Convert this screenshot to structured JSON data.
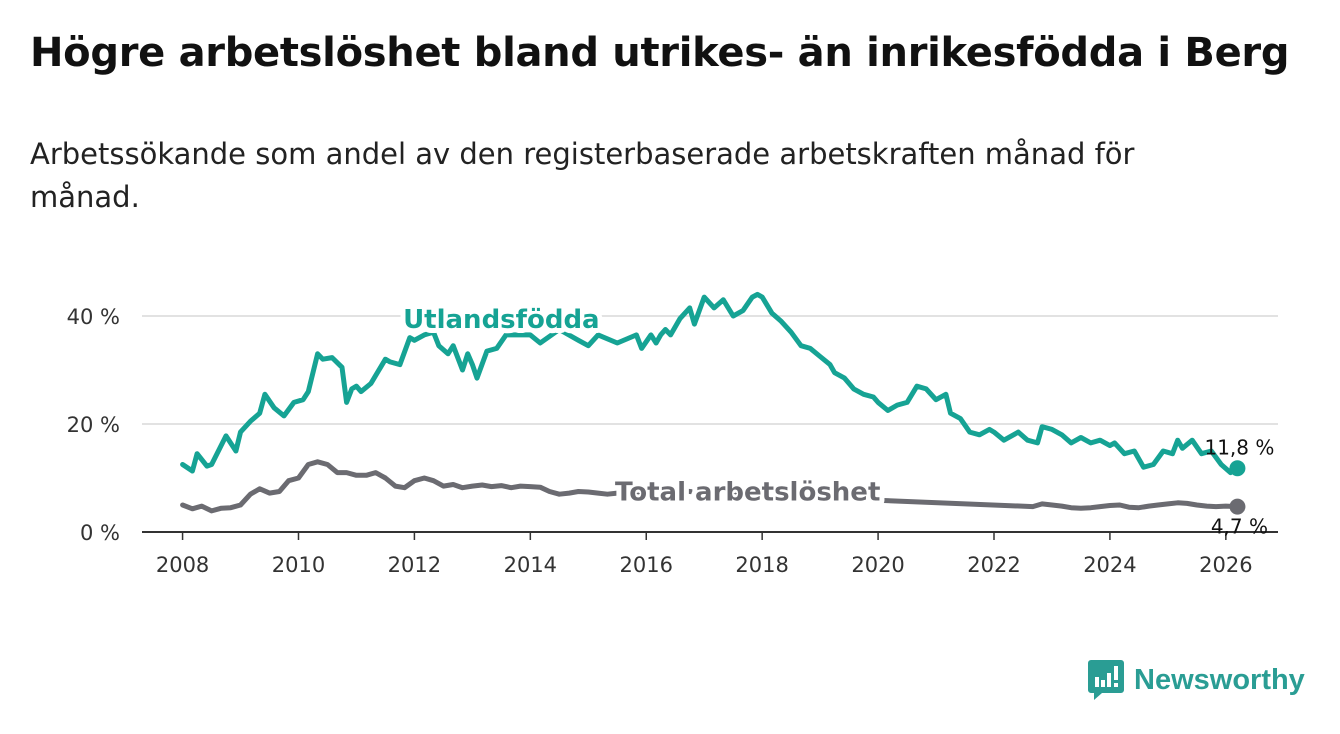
{
  "title": "Högre arbetslöshet bland utrikes- än inrikesfödda i Berg",
  "subtitle": "Arbetssökande som andel av den registerbaserade arbetskraften månad för månad.",
  "brand": {
    "name": "Newsworthy",
    "icon": "newsworthy-logo-icon",
    "color": "#2a9d94"
  },
  "chart_data": {
    "type": "line",
    "title": "Högre arbetslöshet bland utrikes- än inrikesfödda i Berg",
    "xlabel": "",
    "ylabel": "",
    "xlim": [
      2007.3,
      2026.9
    ],
    "ylim": [
      0,
      40
    ],
    "xticks": [
      2008,
      2010,
      2012,
      2014,
      2016,
      2018,
      2020,
      2022,
      2024,
      2026
    ],
    "xtick_labels": [
      "2008",
      "2010",
      "2012",
      "2014",
      "2016",
      "2018",
      "2020",
      "2022",
      "2024",
      "2026"
    ],
    "yticks": [
      0,
      20,
      40
    ],
    "ytick_labels": [
      "0 %",
      "20 %",
      "40 %"
    ],
    "grid": true,
    "series": [
      {
        "name": "Utlandsfödda",
        "color": "#16a394",
        "end_label": "11,8 %",
        "points": [
          [
            2008.0,
            12.5
          ],
          [
            2008.17,
            11.3
          ],
          [
            2008.25,
            14.5
          ],
          [
            2008.42,
            12.2
          ],
          [
            2008.5,
            12.5
          ],
          [
            2008.75,
            17.8
          ],
          [
            2008.92,
            15.0
          ],
          [
            2009.0,
            18.5
          ],
          [
            2009.17,
            20.5
          ],
          [
            2009.33,
            22.0
          ],
          [
            2009.42,
            25.5
          ],
          [
            2009.58,
            23.0
          ],
          [
            2009.75,
            21.5
          ],
          [
            2009.92,
            24.0
          ],
          [
            2010.08,
            24.5
          ],
          [
            2010.17,
            26.0
          ],
          [
            2010.33,
            33.0
          ],
          [
            2010.42,
            32.0
          ],
          [
            2010.58,
            32.3
          ],
          [
            2010.75,
            30.5
          ],
          [
            2010.83,
            24.0
          ],
          [
            2010.92,
            26.5
          ],
          [
            2011.0,
            27.0
          ],
          [
            2011.08,
            26.0
          ],
          [
            2011.25,
            27.5
          ],
          [
            2011.5,
            32.0
          ],
          [
            2011.58,
            31.5
          ],
          [
            2011.75,
            31.0
          ],
          [
            2011.92,
            36.0
          ],
          [
            2012.0,
            35.5
          ],
          [
            2012.17,
            36.5
          ],
          [
            2012.33,
            37.0
          ],
          [
            2012.42,
            34.5
          ],
          [
            2012.58,
            33.0
          ],
          [
            2012.67,
            34.5
          ],
          [
            2012.83,
            30.0
          ],
          [
            2012.92,
            33.0
          ],
          [
            2013.0,
            31.0
          ],
          [
            2013.08,
            28.5
          ],
          [
            2013.25,
            33.5
          ],
          [
            2013.42,
            34.0
          ],
          [
            2013.58,
            36.5
          ],
          [
            2014.0,
            36.5
          ],
          [
            2014.17,
            35.0
          ],
          [
            2014.5,
            37.5
          ],
          [
            2014.83,
            35.5
          ],
          [
            2015.0,
            34.5
          ],
          [
            2015.17,
            36.5
          ],
          [
            2015.5,
            35.0
          ],
          [
            2015.83,
            36.5
          ],
          [
            2015.92,
            34.0
          ],
          [
            2016.08,
            36.5
          ],
          [
            2016.17,
            35.0
          ],
          [
            2016.25,
            36.5
          ],
          [
            2016.33,
            37.5
          ],
          [
            2016.42,
            36.5
          ],
          [
            2016.58,
            39.5
          ],
          [
            2016.75,
            41.5
          ],
          [
            2016.83,
            38.5
          ],
          [
            2017.0,
            43.5
          ],
          [
            2017.17,
            41.5
          ],
          [
            2017.33,
            43.0
          ],
          [
            2017.5,
            40.0
          ],
          [
            2017.67,
            41.0
          ],
          [
            2017.83,
            43.5
          ],
          [
            2017.92,
            44.0
          ],
          [
            2018.0,
            43.5
          ],
          [
            2018.17,
            40.5
          ],
          [
            2018.33,
            39.0
          ],
          [
            2018.5,
            37.0
          ],
          [
            2018.67,
            34.5
          ],
          [
            2018.83,
            34.0
          ],
          [
            2019.0,
            32.5
          ],
          [
            2019.17,
            31.0
          ],
          [
            2019.25,
            29.5
          ],
          [
            2019.42,
            28.5
          ],
          [
            2019.58,
            26.5
          ],
          [
            2019.75,
            25.5
          ],
          [
            2019.92,
            25.0
          ],
          [
            2020.0,
            24.0
          ],
          [
            2020.17,
            22.5
          ],
          [
            2020.33,
            23.5
          ],
          [
            2020.5,
            24.0
          ],
          [
            2020.67,
            27.0
          ],
          [
            2020.83,
            26.5
          ],
          [
            2021.0,
            24.5
          ],
          [
            2021.17,
            25.5
          ],
          [
            2021.25,
            22.0
          ],
          [
            2021.42,
            21.0
          ],
          [
            2021.58,
            18.5
          ],
          [
            2021.75,
            18.0
          ],
          [
            2021.92,
            19.0
          ],
          [
            2022.0,
            18.5
          ],
          [
            2022.17,
            17.0
          ],
          [
            2022.42,
            18.5
          ],
          [
            2022.58,
            17.0
          ],
          [
            2022.75,
            16.5
          ],
          [
            2022.83,
            19.5
          ],
          [
            2023.0,
            19.0
          ],
          [
            2023.17,
            18.0
          ],
          [
            2023.33,
            16.5
          ],
          [
            2023.5,
            17.5
          ],
          [
            2023.67,
            16.5
          ],
          [
            2023.83,
            17.0
          ],
          [
            2024.0,
            16.0
          ],
          [
            2024.08,
            16.5
          ],
          [
            2024.25,
            14.5
          ],
          [
            2024.42,
            15.0
          ],
          [
            2024.58,
            12.0
          ],
          [
            2024.75,
            12.5
          ],
          [
            2024.92,
            15.0
          ],
          [
            2025.08,
            14.5
          ],
          [
            2025.17,
            17.0
          ],
          [
            2025.25,
            15.5
          ],
          [
            2025.42,
            17.0
          ],
          [
            2025.58,
            14.5
          ],
          [
            2025.75,
            15.0
          ],
          [
            2025.92,
            12.5
          ],
          [
            2026.08,
            11.0
          ],
          [
            2026.2,
            11.8
          ]
        ]
      },
      {
        "name": "Total arbetslöshet",
        "color": "#6b6b71",
        "end_label": "4,7 %",
        "points": [
          [
            2008.0,
            5.0
          ],
          [
            2008.17,
            4.3
          ],
          [
            2008.33,
            4.8
          ],
          [
            2008.5,
            3.9
          ],
          [
            2008.67,
            4.4
          ],
          [
            2008.83,
            4.5
          ],
          [
            2009.0,
            5.0
          ],
          [
            2009.17,
            7.0
          ],
          [
            2009.33,
            8.0
          ],
          [
            2009.5,
            7.2
          ],
          [
            2009.67,
            7.5
          ],
          [
            2009.83,
            9.5
          ],
          [
            2010.0,
            10.0
          ],
          [
            2010.17,
            12.5
          ],
          [
            2010.33,
            13.0
          ],
          [
            2010.5,
            12.5
          ],
          [
            2010.67,
            11.0
          ],
          [
            2010.83,
            11.0
          ],
          [
            2011.0,
            10.5
          ],
          [
            2011.17,
            10.5
          ],
          [
            2011.33,
            11.0
          ],
          [
            2011.5,
            10.0
          ],
          [
            2011.67,
            8.5
          ],
          [
            2011.83,
            8.2
          ],
          [
            2012.0,
            9.5
          ],
          [
            2012.17,
            10.0
          ],
          [
            2012.33,
            9.5
          ],
          [
            2012.5,
            8.5
          ],
          [
            2012.67,
            8.8
          ],
          [
            2012.83,
            8.2
          ],
          [
            2013.0,
            8.5
          ],
          [
            2013.17,
            8.7
          ],
          [
            2013.33,
            8.4
          ],
          [
            2013.5,
            8.6
          ],
          [
            2013.67,
            8.2
          ],
          [
            2013.83,
            8.5
          ],
          [
            2014.0,
            8.4
          ],
          [
            2014.17,
            8.3
          ],
          [
            2014.33,
            7.5
          ],
          [
            2014.5,
            7.0
          ],
          [
            2014.67,
            7.2
          ],
          [
            2014.83,
            7.5
          ],
          [
            2015.0,
            7.4
          ],
          [
            2015.17,
            7.2
          ],
          [
            2015.33,
            7.0
          ],
          [
            2015.5,
            7.2
          ],
          [
            2015.67,
            6.8
          ],
          [
            2015.83,
            7.0
          ],
          [
            2016.0,
            7.6
          ],
          [
            2016.17,
            7.3
          ],
          [
            2016.33,
            7.0
          ],
          [
            2016.5,
            7.4
          ],
          [
            2016.67,
            7.6
          ],
          [
            2016.83,
            7.4
          ],
          [
            2017.0,
            7.8
          ],
          [
            2017.17,
            8.0
          ],
          [
            2017.33,
            7.8
          ],
          [
            2017.5,
            7.2
          ],
          [
            2017.67,
            6.9
          ],
          [
            2022.67,
            4.7
          ],
          [
            2022.83,
            5.2
          ],
          [
            2023.0,
            5.0
          ],
          [
            2023.17,
            4.8
          ],
          [
            2023.33,
            4.5
          ],
          [
            2023.5,
            4.4
          ],
          [
            2023.67,
            4.5
          ],
          [
            2023.83,
            4.7
          ],
          [
            2024.0,
            4.9
          ],
          [
            2024.17,
            5.0
          ],
          [
            2024.33,
            4.6
          ],
          [
            2024.5,
            4.5
          ],
          [
            2024.67,
            4.8
          ],
          [
            2024.83,
            5.0
          ],
          [
            2025.0,
            5.2
          ],
          [
            2025.17,
            5.4
          ],
          [
            2025.33,
            5.3
          ],
          [
            2025.5,
            5.0
          ],
          [
            2025.67,
            4.8
          ],
          [
            2025.83,
            4.7
          ],
          [
            2026.0,
            4.8
          ],
          [
            2026.2,
            4.7
          ]
        ]
      }
    ],
    "annotations": [
      {
        "text": "Utlandsfödda",
        "series": 0,
        "anchor": [
          2013.5,
          37.8
        ]
      },
      {
        "text": "Total arbetslöshet",
        "series": 1,
        "anchor": [
          2017.75,
          5.8
        ]
      }
    ]
  }
}
